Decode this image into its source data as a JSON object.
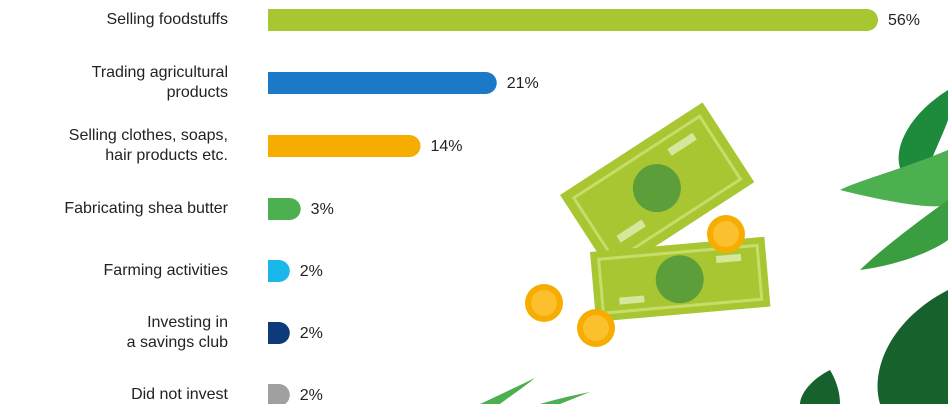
{
  "chart_data": {
    "type": "bar",
    "orientation": "horizontal",
    "categories": [
      "Selling foodstuffs",
      "Trading agricultural\nproducts",
      "Selling clothes, soaps,\nhair products etc.",
      "Fabricating shea butter",
      "Farming activities",
      "Investing in\na savings club",
      "Did not invest"
    ],
    "values": [
      56,
      21,
      14,
      3,
      2,
      2,
      2
    ],
    "value_labels": [
      "56%",
      "21%",
      "14%",
      "3%",
      "2%",
      "2%",
      "2%"
    ],
    "colors": [
      "#a8c632",
      "#1a7ac7",
      "#f7ac00",
      "#4caf50",
      "#1ab8ea",
      "#0c3a7a",
      "#a0a0a0"
    ]
  }
}
